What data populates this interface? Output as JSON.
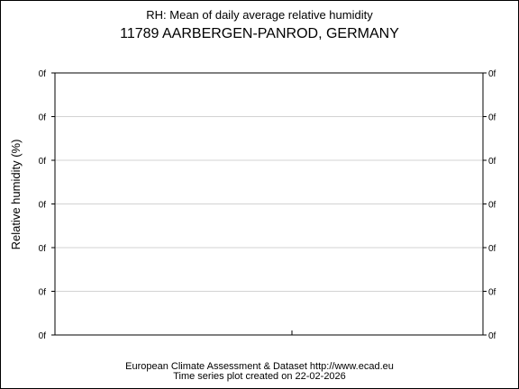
{
  "chart_data": {
    "type": "line",
    "title": "RH: Mean of daily average relative humidity",
    "subtitle": "11789 AARBERGEN-PANROD, GERMANY",
    "xlabel": "",
    "ylabel": "Relative humidity (%)",
    "y_tick_labels": [
      "0f",
      "0f",
      "0f",
      "0f",
      "0f",
      "0f",
      "0f"
    ],
    "x_tick_labels": [],
    "series": [],
    "grid": true,
    "legend": "none"
  },
  "footer": {
    "source": "European Climate Assessment & Dataset  http://www.ecad.eu",
    "created": "Time series plot created on 22-02-2026"
  },
  "colors": {
    "frame": "#000000",
    "gridline": "#d3d3d3",
    "background": "#ffffff"
  }
}
